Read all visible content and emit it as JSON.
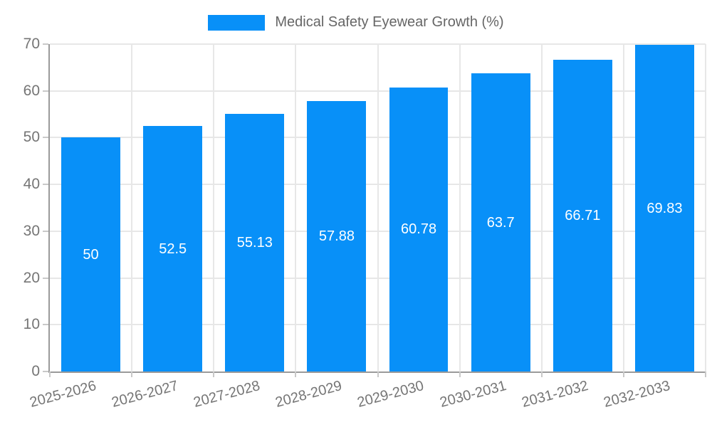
{
  "chart_data": {
    "type": "bar",
    "title": "Medical Safety Eyewear Growth (%)",
    "categories": [
      "2025-2026",
      "2026-2027",
      "2027-2028",
      "2028-2029",
      "2029-2030",
      "2030-2031",
      "2031-2032",
      "2032-2033"
    ],
    "values": [
      50,
      52.5,
      55.13,
      57.88,
      60.78,
      63.7,
      66.71,
      69.83
    ],
    "value_labels": [
      "50",
      "52.5",
      "55.13",
      "57.88",
      "60.78",
      "63.7",
      "66.71",
      "69.83"
    ],
    "yticks": [
      0,
      10,
      20,
      30,
      40,
      50,
      60,
      70
    ],
    "ylim": [
      0,
      70
    ],
    "xlabel": "",
    "ylabel": "",
    "grid": true,
    "legend_position": "top",
    "x_label_rotation_deg": -15,
    "bar_color": "#0890F8",
    "value_label_color": "#FFFFFF",
    "axis_text_color": "#757575",
    "legend_text_color": "#666666",
    "grid_color": "#E7E7E7",
    "axis_line_color": "#9A9A9A",
    "tick_color": "#C9C9C9",
    "background_color": "#FFFFFF"
  }
}
